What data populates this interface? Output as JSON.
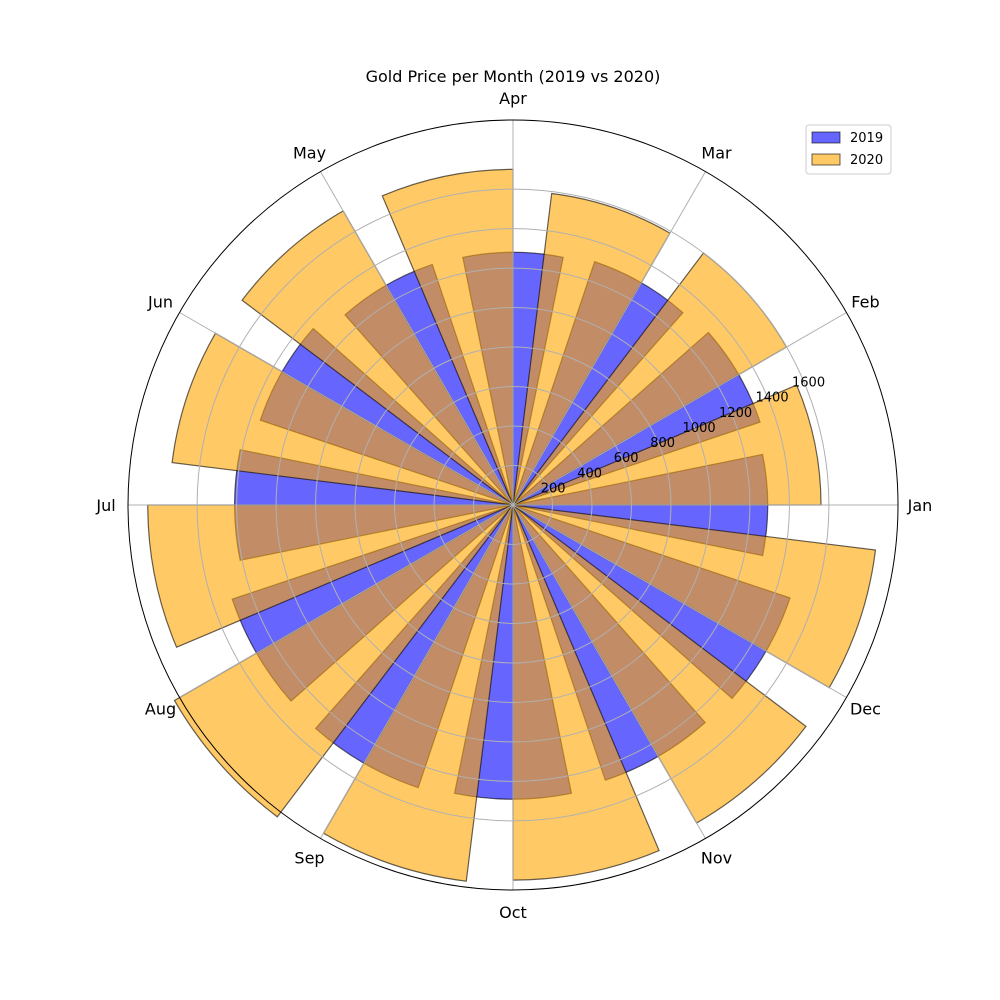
{
  "chart_data": {
    "type": "bar",
    "subtype": "polar",
    "title": "Gold Price per Month (2019 vs 2020)",
    "categories": [
      "Jan",
      "Feb",
      "Mar",
      "Apr",
      "May",
      "Jun",
      "Jul",
      "Aug",
      "Sep",
      "Oct",
      "Nov",
      "Dec"
    ],
    "series": [
      {
        "name": "2019",
        "color": "#0000ff",
        "values": [
          1290,
          1320,
          1300,
          1280,
          1285,
          1350,
          1410,
          1500,
          1510,
          1490,
          1470,
          1480
        ]
      },
      {
        "name": "2020",
        "color": "#ffa500",
        "values": [
          1560,
          1600,
          1590,
          1700,
          1720,
          1740,
          1850,
          1980,
          1920,
          1900,
          1860,
          1850
        ]
      }
    ],
    "r_ticks": [
      200,
      400,
      600,
      800,
      1000,
      1200,
      1400,
      1600
    ],
    "rlim": [
      0,
      1950
    ],
    "legend_position": "top-right",
    "grid": true
  }
}
